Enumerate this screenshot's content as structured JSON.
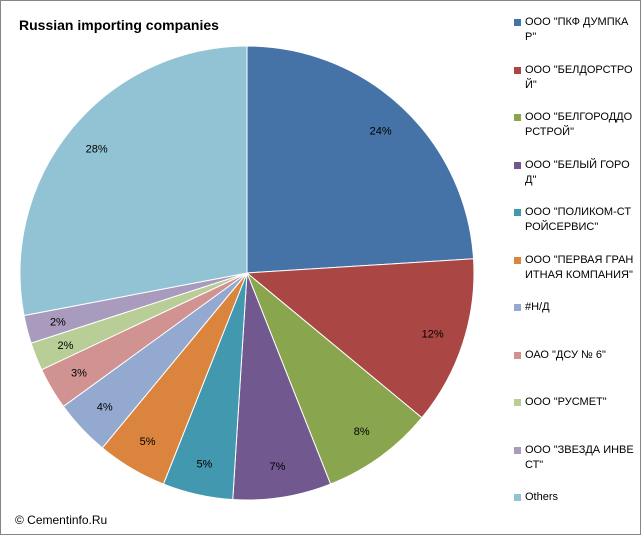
{
  "title": "Russian importing companies",
  "copyright": "© Cementinfo.Ru",
  "chart_data": {
    "type": "pie",
    "title": "Russian importing companies",
    "slices": [
      {
        "name": "ООО \"ПКФ ДУМПКАР\"",
        "value": 24,
        "label": "24%",
        "color": "#4572a7"
      },
      {
        "name": "ООО \"БЕЛДОРСТРОЙ\"",
        "value": 12,
        "label": "12%",
        "color": "#aa4643"
      },
      {
        "name": "ООО \"БЕЛГОРОДДОРСТРОЙ\"",
        "value": 8,
        "label": "8%",
        "color": "#89a54e"
      },
      {
        "name": "ООО \"БЕЛЫЙ ГОРОД\"",
        "value": 7,
        "label": "7%",
        "color": "#71588f"
      },
      {
        "name": "ООО \"ПОЛИКОМ-СТРОЙСЕРВИС\"",
        "value": 5,
        "label": "5%",
        "color": "#4198af"
      },
      {
        "name": "ООО \"ПЕРВАЯ ГРАНИТНАЯ КОМПАНИЯ\"",
        "value": 5,
        "label": "5%",
        "color": "#db843d"
      },
      {
        "name": "#Н/Д",
        "value": 4,
        "label": "4%",
        "color": "#93a9cf"
      },
      {
        "name": "ОАО \"ДСУ № 6\"",
        "value": 3,
        "label": "3%",
        "color": "#d19392"
      },
      {
        "name": "ООО \"РУСМЕТ\"",
        "value": 2,
        "label": "2%",
        "color": "#b9cd96"
      },
      {
        "name": "ООО \"ЗВЕЗДА ИНВЕСТ\"",
        "value": 2,
        "label": "2%",
        "color": "#a99bbd"
      },
      {
        "name": "Others",
        "value": 28,
        "label": "28%",
        "color": "#92c3d4"
      }
    ],
    "legend_position": "right",
    "start": "12 o'clock, clockwise"
  }
}
